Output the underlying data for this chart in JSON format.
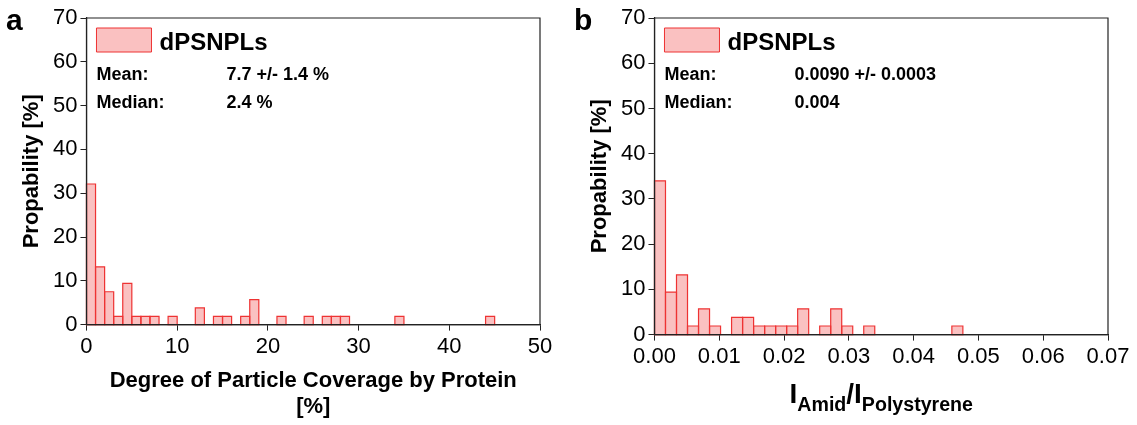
{
  "chart_data": [
    {
      "type": "histogram",
      "title": "a",
      "xlabel": "Degree of Particle Coverage by Protein [%]",
      "ylabel": "Propability [%]",
      "bins": [
        0,
        1,
        2,
        3,
        4,
        5,
        6,
        7,
        8,
        9,
        10,
        11,
        12,
        13,
        14,
        15,
        16,
        17,
        18,
        19,
        20,
        21,
        22,
        23,
        24,
        25,
        26,
        27,
        28,
        29,
        30,
        31,
        32,
        33,
        34,
        35,
        36,
        37,
        38,
        39,
        40,
        41,
        42,
        43,
        44,
        45
      ],
      "series": [
        {
          "name": "dPSNPLs",
          "color": "#ee3333",
          "values": [
            32.1,
            13.2,
            7.5,
            1.9,
            9.4,
            1.9,
            1.9,
            1.9,
            0,
            1.9,
            0,
            0,
            3.8,
            0,
            1.9,
            1.9,
            0,
            1.9,
            5.7,
            0,
            0,
            1.9,
            0,
            0,
            1.9,
            0,
            1.9,
            1.9,
            1.9,
            0,
            0,
            0,
            0,
            0,
            1.9,
            0,
            0,
            0,
            0,
            0,
            0,
            0,
            0,
            0,
            1.9
          ]
        }
      ],
      "annotations": [
        "Mean:\t7.7 +/- 1.4 %",
        "Median:\t2.4 %"
      ],
      "xlim": [
        0,
        50
      ],
      "xticks": [
        0,
        10,
        20,
        30,
        40,
        50
      ],
      "ylim": [
        0,
        70
      ],
      "yticks": [
        0,
        10,
        20,
        30,
        40,
        50,
        60,
        70
      ],
      "legend": "top left",
      "grid": false
    },
    {
      "type": "histogram",
      "title": "b",
      "xlabel": "I$_{Amid}$/I$_{Polystyrene}$",
      "ylabel": "Propability [%]",
      "bins": [
        0,
        0.0017,
        0.0034,
        0.0051,
        0.0068,
        0.0085,
        0.0102,
        0.0119,
        0.0136,
        0.0153,
        0.017,
        0.0187,
        0.0204,
        0.0221,
        0.0238,
        0.0255,
        0.0272,
        0.0289,
        0.0306,
        0.0323,
        0.034,
        0.0357,
        0.0374,
        0.0391,
        0.0408,
        0.0425,
        0.0442,
        0.0459,
        0.0476
      ],
      "series": [
        {
          "name": "dPSNPLs",
          "color": "#ee3333",
          "values": [
            34,
            9.4,
            13.2,
            1.9,
            5.7,
            1.9,
            0,
            3.8,
            3.8,
            1.9,
            1.9,
            1.9,
            1.9,
            5.7,
            0,
            1.9,
            5.7,
            1.9,
            0,
            1.9,
            0,
            0,
            0,
            0,
            0,
            0,
            0,
            1.9
          ]
        }
      ],
      "annotations": [
        "Mean:\t0.0090 +/- 0.0003",
        "Median:\t0.004"
      ],
      "xlim": [
        0,
        0.07
      ],
      "xticks": [
        {
          "value": 0,
          "label": "0.00"
        },
        {
          "value": 0.01,
          "label": "0.01"
        },
        {
          "value": 0.02,
          "label": "0.02"
        },
        {
          "value": 0.03,
          "label": "0.03"
        },
        {
          "value": 0.04,
          "label": "0.04"
        },
        {
          "value": 0.05,
          "label": "0.05"
        },
        {
          "value": 0.06,
          "label": "0.06"
        },
        {
          "value": 0.07,
          "label": "0.07"
        }
      ],
      "ylim": [
        0,
        70
      ],
      "yticks": [
        0,
        10,
        20,
        30,
        40,
        50,
        60,
        70
      ],
      "legend": "top left",
      "grid": false
    }
  ]
}
